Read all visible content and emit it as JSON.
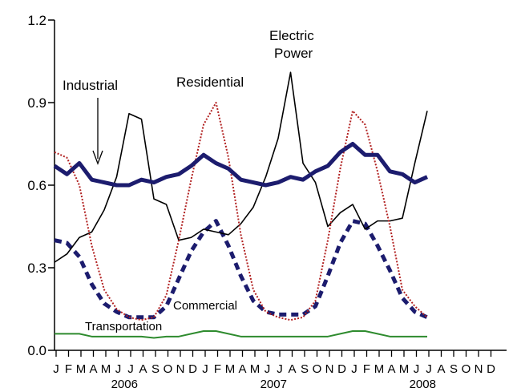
{
  "chart_data": {
    "type": "line",
    "ylim": [
      0,
      1.2
    ],
    "yticks": [
      "0.0",
      "0.3",
      "0.6",
      "0.9",
      "1.2"
    ],
    "ytick_values": [
      0,
      0.3,
      0.6,
      0.9,
      1.2
    ],
    "month_labels": [
      "J",
      "F",
      "M",
      "A",
      "M",
      "J",
      "J",
      "A",
      "S",
      "O",
      "N",
      "D",
      "J",
      "F",
      "M",
      "A",
      "M",
      "J",
      "J",
      "A",
      "S",
      "O",
      "N",
      "D",
      "J",
      "F",
      "M",
      "A",
      "M",
      "J",
      "J",
      "A",
      "S",
      "O",
      "N",
      "D"
    ],
    "year_labels": [
      "2006",
      "2007",
      "2008"
    ],
    "grid": false,
    "series": [
      {
        "name": "Industrial",
        "color": "#1c1c6e",
        "values": [
          0.67,
          0.64,
          0.68,
          0.62,
          0.61,
          0.6,
          0.6,
          0.62,
          0.61,
          0.63,
          0.64,
          0.67,
          0.71,
          0.68,
          0.66,
          0.62,
          0.61,
          0.6,
          0.61,
          0.63,
          0.62,
          0.65,
          0.67,
          0.72,
          0.75,
          0.71,
          0.71,
          0.65,
          0.64,
          0.61,
          0.63
        ]
      },
      {
        "name": "Electric Power",
        "color": "#000000",
        "values": [
          0.32,
          0.35,
          0.41,
          0.43,
          0.51,
          0.63,
          0.86,
          0.84,
          0.55,
          0.53,
          0.4,
          0.41,
          0.44,
          0.43,
          0.42,
          0.46,
          0.52,
          0.63,
          0.77,
          1.01,
          0.68,
          0.61,
          0.45,
          0.5,
          0.53,
          0.44,
          0.47,
          0.47,
          0.48,
          0.68,
          0.87
        ]
      },
      {
        "name": "Residential",
        "color": "#b22222",
        "values": [
          0.72,
          0.7,
          0.6,
          0.38,
          0.22,
          0.15,
          0.12,
          0.11,
          0.12,
          0.2,
          0.4,
          0.62,
          0.82,
          0.9,
          0.7,
          0.42,
          0.22,
          0.14,
          0.12,
          0.11,
          0.12,
          0.18,
          0.4,
          0.66,
          0.87,
          0.82,
          0.65,
          0.45,
          0.22,
          0.16,
          0.12
        ]
      },
      {
        "name": "Commercial",
        "color": "#1c1c6e",
        "values": [
          0.4,
          0.39,
          0.34,
          0.24,
          0.17,
          0.14,
          0.12,
          0.12,
          0.12,
          0.16,
          0.26,
          0.36,
          0.43,
          0.47,
          0.38,
          0.27,
          0.18,
          0.14,
          0.13,
          0.13,
          0.13,
          0.16,
          0.27,
          0.39,
          0.47,
          0.46,
          0.38,
          0.29,
          0.19,
          0.14,
          0.12
        ]
      },
      {
        "name": "Transportation",
        "color": "#2e8b2e",
        "values": [
          0.06,
          0.06,
          0.06,
          0.05,
          0.05,
          0.05,
          0.05,
          0.05,
          0.045,
          0.05,
          0.05,
          0.06,
          0.07,
          0.07,
          0.06,
          0.05,
          0.05,
          0.05,
          0.05,
          0.05,
          0.05,
          0.05,
          0.05,
          0.06,
          0.07,
          0.07,
          0.06,
          0.05,
          0.05,
          0.05,
          0.05
        ]
      }
    ],
    "annotations": {
      "industrial": "Industrial",
      "electric_line1": "Electric",
      "electric_line2": "Power",
      "residential": "Residential",
      "commercial": "Commercial",
      "transportation": "Transportation"
    }
  }
}
